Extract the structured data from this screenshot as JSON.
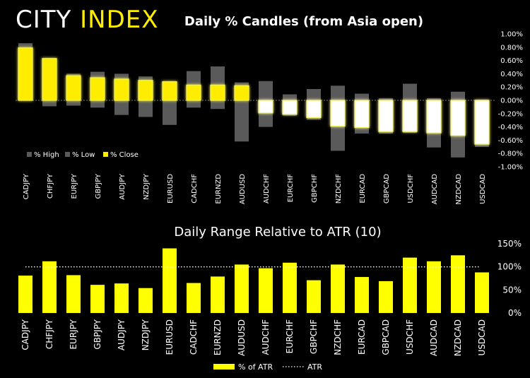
{
  "brand": {
    "word1": "CITY",
    "word2": "INDEX"
  },
  "chart_data": [
    {
      "type": "candlestick-bar",
      "title": "Daily % Candles (from Asia open)",
      "categories": [
        "CADJPY",
        "CHFJPY",
        "EURJPY",
        "GBPJPY",
        "AUDJPY",
        "NZDJPY",
        "EURUSD",
        "CADCHF",
        "EURNZD",
        "AUDUSD",
        "AUDCHF",
        "EURCHF",
        "GBPCHF",
        "NZDCHF",
        "EURCAD",
        "GBPCAD",
        "USDCHF",
        "AUDCAD",
        "NZDCAD",
        "USDCAD"
      ],
      "series": [
        {
          "name": "% High",
          "values": [
            0.86,
            0.63,
            0.4,
            0.43,
            0.4,
            0.36,
            0.29,
            0.44,
            0.51,
            0.27,
            0.29,
            0.09,
            0.17,
            0.22,
            0.1,
            0.03,
            0.25,
            0.03,
            0.13,
            0.01
          ]
        },
        {
          "name": "% Low",
          "values": [
            0.0,
            -0.09,
            -0.08,
            -0.11,
            -0.22,
            -0.25,
            -0.37,
            -0.11,
            -0.13,
            -0.62,
            -0.4,
            -0.23,
            -0.29,
            -0.76,
            -0.5,
            -0.5,
            -0.49,
            -0.71,
            -0.86,
            -0.7
          ]
        },
        {
          "name": "% Close",
          "values": [
            0.79,
            0.63,
            0.37,
            0.34,
            0.32,
            0.3,
            0.28,
            0.23,
            0.23,
            0.22,
            -0.19,
            -0.21,
            -0.26,
            -0.39,
            -0.41,
            -0.47,
            -0.47,
            -0.49,
            -0.53,
            -0.66
          ]
        }
      ],
      "ylim": [
        -1.0,
        1.0
      ],
      "yticks": [
        1.0,
        0.8,
        0.6,
        0.4,
        0.2,
        0.0,
        -0.2,
        -0.4,
        -0.6,
        -0.8,
        -1.0
      ],
      "ytick_labels": [
        "1.00%",
        "0.80%",
        "0.60%",
        "0.40%",
        "0.20%",
        "0.00%",
        "-0.20%",
        "-0.40%",
        "-0.60%",
        "-0.80%",
        "-1.00%"
      ],
      "legend": [
        "% High",
        "% Low",
        "% Close"
      ],
      "legend_position": "bottom-left",
      "colors": {
        "range": "#5a5a5a",
        "close_up": "#ffed00",
        "close_down": "#ffffff",
        "glow": "#f2f25a"
      }
    },
    {
      "type": "bar",
      "title": "Daily Range Relative to ATR (10)",
      "categories": [
        "CADJPY",
        "CHFJPY",
        "EURJPY",
        "GBPJPY",
        "AUDJPY",
        "NZDJPY",
        "EURUSD",
        "CADCHF",
        "EURNZD",
        "AUDUSD",
        "AUDCHF",
        "EURCHF",
        "GBPCHF",
        "NZDCHF",
        "EURCAD",
        "GBPCAD",
        "USDCHF",
        "AUDCAD",
        "NZDCAD",
        "USDCAD"
      ],
      "series": [
        {
          "name": "% of ATR",
          "values": [
            81,
            112,
            82,
            61,
            64,
            54,
            140,
            65,
            79,
            105,
            97,
            109,
            71,
            105,
            78,
            69,
            120,
            112,
            125,
            88
          ]
        }
      ],
      "reference_line": {
        "name": "ATR",
        "value": 100
      },
      "ylim": [
        0,
        150
      ],
      "yticks": [
        0,
        50,
        100,
        150
      ],
      "ytick_labels": [
        "0%",
        "50%",
        "100%",
        "150%"
      ],
      "legend": [
        "% of ATR",
        "ATR"
      ],
      "legend_position": "bottom-center",
      "colors": {
        "bar": "#ffff00",
        "atr_line": "#ffffff"
      }
    }
  ]
}
